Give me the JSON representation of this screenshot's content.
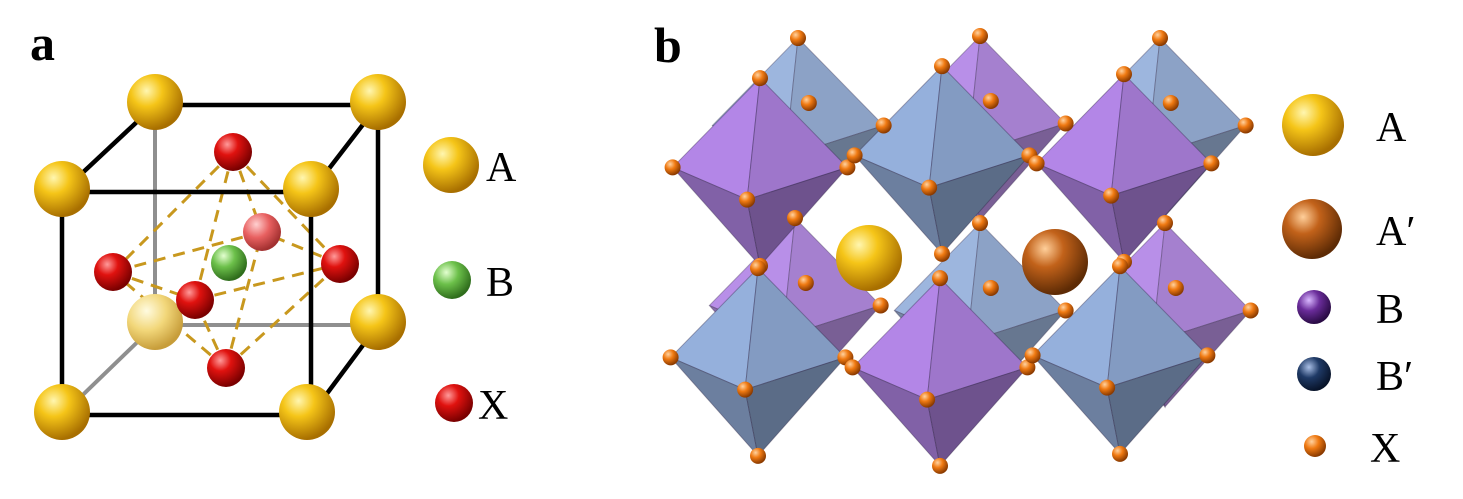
{
  "panel_a": {
    "label": "a",
    "legend": [
      {
        "symbol": "A",
        "label": "A",
        "color": "#f2b705"
      },
      {
        "symbol": "B",
        "label": "B",
        "color": "#6cc04a"
      },
      {
        "symbol": "X",
        "label": "X",
        "color": "#e0120f"
      }
    ]
  },
  "panel_b": {
    "label": "b",
    "legend": [
      {
        "symbol": "A",
        "label": "A",
        "color": "#f2b705"
      },
      {
        "symbol": "A-prime",
        "label": "A′",
        "color": "#c2621a"
      },
      {
        "symbol": "B",
        "label": "B",
        "color": "#6a2c9a"
      },
      {
        "symbol": "B-prime",
        "label": "B′",
        "color": "#1f3a66"
      },
      {
        "symbol": "X",
        "label": "X",
        "color": "#f07a12"
      }
    ],
    "octahedron_colors": {
      "purple": "#a67cd6",
      "blue": "#8aa3cc"
    }
  }
}
